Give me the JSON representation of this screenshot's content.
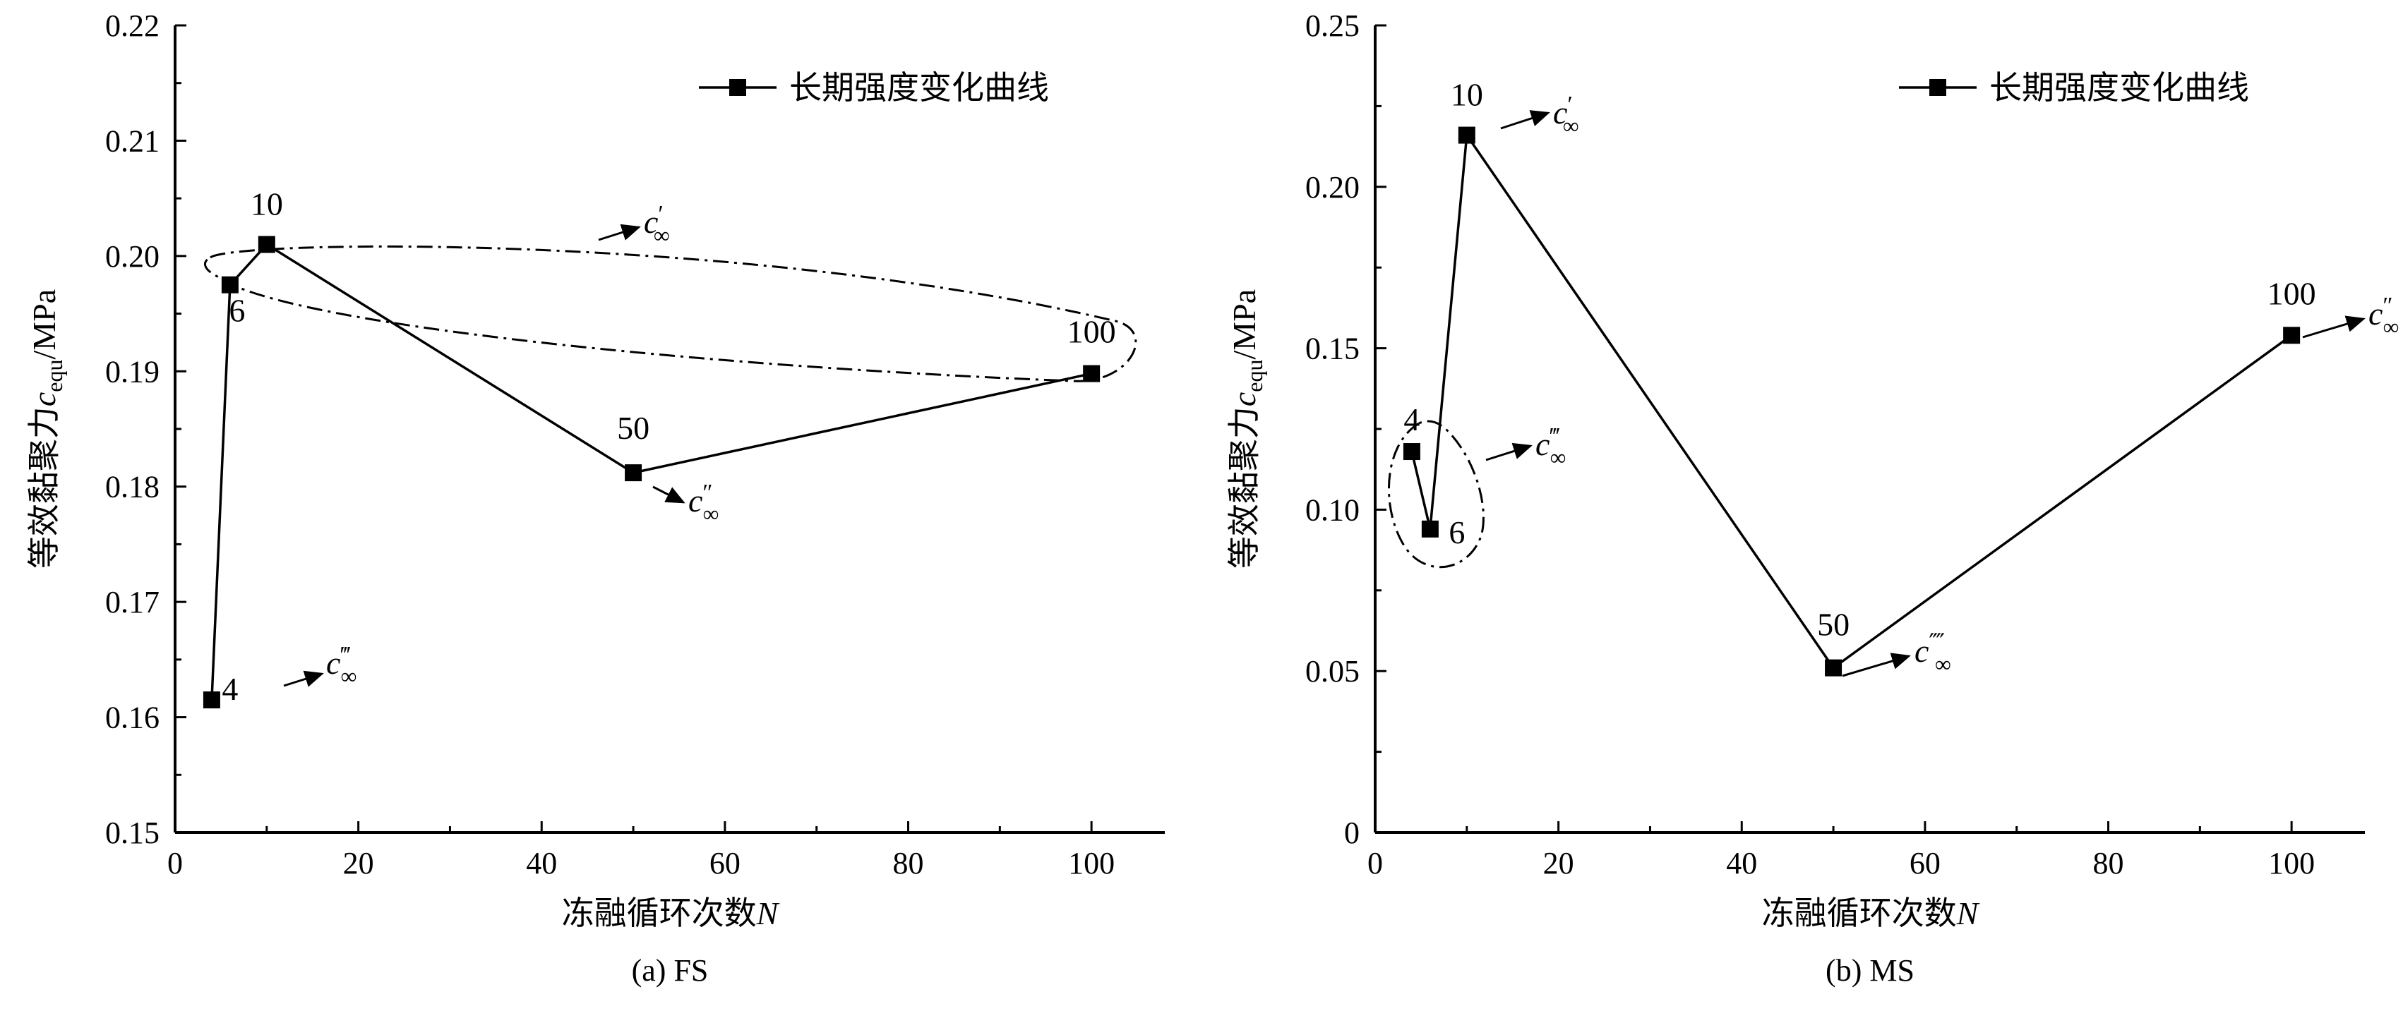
{
  "chart_data": [
    {
      "type": "line",
      "caption": "(a) FS",
      "xlabel": "冻融循环次数",
      "xlabel_var": "N",
      "ylabel_prefix": "等效黏聚力",
      "ylabel_var": "c",
      "ylabel_sub": "equ",
      "ylabel_unit": "/MPa",
      "xlim": [
        0,
        108
      ],
      "ylim": [
        0.15,
        0.22
      ],
      "xticks": [
        0,
        20,
        40,
        60,
        80,
        100
      ],
      "yticks": [
        0.15,
        0.16,
        0.17,
        0.18,
        0.19,
        0.2,
        0.21,
        0.22
      ],
      "ytick_labels": [
        "0.15",
        "0.16",
        "0.17",
        "0.18",
        "0.19",
        "0.20",
        "0.21",
        "0.22"
      ],
      "grid": false,
      "legend_position": "top-right",
      "series": [
        {
          "name": "长期强度变化曲线",
          "marker": "square",
          "color": "#000000",
          "x": [
            4,
            6,
            10,
            50,
            100
          ],
          "y": [
            0.1615,
            0.1975,
            0.201,
            0.1812,
            0.1898
          ]
        }
      ],
      "point_labels": [
        "4",
        "6",
        "10",
        "50",
        "100"
      ],
      "annotations": [
        {
          "text": "c",
          "prime": "′",
          "sub": "∞"
        },
        {
          "text": "c",
          "prime": "″",
          "sub": "∞"
        },
        {
          "text": "c",
          "prime": "‴",
          "sub": "∞"
        }
      ]
    },
    {
      "type": "line",
      "caption": "(b) MS",
      "xlabel": "冻融循环次数",
      "xlabel_var": "N",
      "ylabel_prefix": "等效黏聚力",
      "ylabel_var": "c",
      "ylabel_sub": "equ",
      "ylabel_unit": "/MPa",
      "xlim": [
        0,
        108
      ],
      "ylim": [
        0,
        0.25
      ],
      "xticks": [
        0,
        20,
        40,
        60,
        80,
        100
      ],
      "yticks": [
        0,
        0.05,
        0.1,
        0.15,
        0.2,
        0.25
      ],
      "ytick_labels": [
        "0",
        "0.05",
        "0.10",
        "0.15",
        "0.20",
        "0.25"
      ],
      "grid": false,
      "legend_position": "top-right",
      "series": [
        {
          "name": "长期强度变化曲线",
          "marker": "square",
          "color": "#000000",
          "x": [
            4,
            6,
            10,
            50,
            100
          ],
          "y": [
            0.118,
            0.094,
            0.216,
            0.051,
            0.154
          ]
        }
      ],
      "point_labels": [
        "4",
        "6",
        "10",
        "50",
        "100"
      ],
      "annotations": [
        {
          "text": "c",
          "prime": "′",
          "sub": "∞"
        },
        {
          "text": "c",
          "prime": "″",
          "sub": "∞"
        },
        {
          "text": "c",
          "prime": "‴",
          "sub": "∞"
        },
        {
          "text": "c",
          "prime": "⁗",
          "sub": "∞"
        }
      ]
    }
  ]
}
